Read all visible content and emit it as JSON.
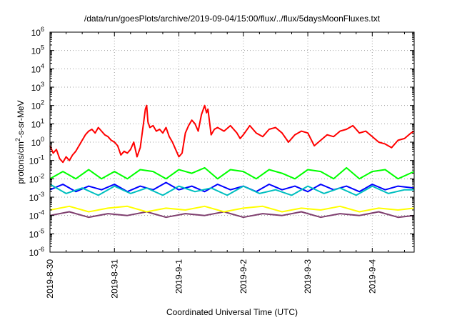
{
  "chart_data": {
    "type": "line",
    "title": "/data/run/goesPlots/archive/2019-09-04/15:00/flux/../flux/5daysMoonFluxes.txt",
    "xlabel": "Coordinated Universal Time (UTC)",
    "ylabel": {
      "prefix": "protons/cm",
      "sup": "2",
      "suffix": "-s-sr-MeV"
    },
    "y_scale": "log",
    "ylim_exponents": [
      -6,
      6
    ],
    "y_ticks": [
      {
        "base": "10",
        "exp": "-6"
      },
      {
        "base": "10",
        "exp": "-5"
      },
      {
        "base": "10",
        "exp": "-4"
      },
      {
        "base": "10",
        "exp": "-3"
      },
      {
        "base": "10",
        "exp": "-2"
      },
      {
        "base": "10",
        "exp": "-1"
      },
      {
        "base": "10",
        "exp": "0"
      },
      {
        "base": "10",
        "exp": "1"
      },
      {
        "base": "10",
        "exp": "2"
      },
      {
        "base": "10",
        "exp": "3"
      },
      {
        "base": "10",
        "exp": "4"
      },
      {
        "base": "10",
        "exp": "5"
      },
      {
        "base": "10",
        "exp": "6"
      }
    ],
    "x_ticks": [
      "2019-8-30",
      "2019-8-31",
      "2019-9-1",
      "2019-9-2",
      "2019-9-3",
      "2019-9-4"
    ],
    "xlim_days": [
      0,
      5.65
    ],
    "grid": true,
    "legend": "none",
    "series": [
      {
        "color": "#ff0000",
        "x": [
          0.0,
          0.05,
          0.1,
          0.15,
          0.2,
          0.25,
          0.3,
          0.35,
          0.4,
          0.45,
          0.5,
          0.55,
          0.6,
          0.65,
          0.7,
          0.75,
          0.8,
          0.85,
          0.9,
          0.95,
          1.0,
          1.05,
          1.1,
          1.15,
          1.2,
          1.25,
          1.3,
          1.35,
          1.4,
          1.45,
          1.48,
          1.5,
          1.52,
          1.55,
          1.6,
          1.65,
          1.7,
          1.75,
          1.8,
          1.85,
          1.9,
          1.95,
          2.0,
          2.05,
          2.1,
          2.15,
          2.2,
          2.25,
          2.3,
          2.35,
          2.4,
          2.43,
          2.45,
          2.5,
          2.55,
          2.6,
          2.7,
          2.8,
          2.9,
          2.95,
          3.0,
          3.1,
          3.2,
          3.3,
          3.4,
          3.5,
          3.6,
          3.7,
          3.8,
          3.9,
          4.0,
          4.1,
          4.2,
          4.3,
          4.4,
          4.5,
          4.6,
          4.7,
          4.8,
          4.9,
          5.0,
          5.1,
          5.2,
          5.3,
          5.4,
          5.5,
          5.6,
          5.65
        ],
        "y_log10": [
          -0.2,
          -0.6,
          -0.4,
          -0.9,
          -1.1,
          -0.8,
          -1.0,
          -0.7,
          -0.5,
          -0.2,
          0.1,
          0.4,
          0.6,
          0.7,
          0.5,
          0.8,
          0.6,
          0.4,
          0.3,
          0.1,
          0.0,
          -0.2,
          -0.7,
          -0.5,
          -0.6,
          -0.4,
          0.0,
          -0.8,
          -0.3,
          1.0,
          1.8,
          2.0,
          1.1,
          0.8,
          0.9,
          0.6,
          0.7,
          0.5,
          0.8,
          0.3,
          0.0,
          -0.4,
          -0.8,
          -0.6,
          0.5,
          0.9,
          1.2,
          1.0,
          0.6,
          1.5,
          2.0,
          1.6,
          1.8,
          0.4,
          0.7,
          0.8,
          0.6,
          0.9,
          0.5,
          0.2,
          0.4,
          0.9,
          0.5,
          0.3,
          0.7,
          0.8,
          0.5,
          0.0,
          0.4,
          0.6,
          0.5,
          -0.2,
          0.1,
          0.4,
          0.3,
          0.6,
          0.7,
          0.9,
          0.5,
          0.6,
          0.3,
          0.0,
          -0.1,
          -0.3,
          0.1,
          0.2,
          0.5,
          0.6
        ]
      },
      {
        "color": "#00ff00",
        "x": [
          0.0,
          0.2,
          0.4,
          0.6,
          0.8,
          1.0,
          1.2,
          1.4,
          1.6,
          1.8,
          2.0,
          2.2,
          2.4,
          2.6,
          2.8,
          3.0,
          3.2,
          3.4,
          3.6,
          3.8,
          4.0,
          4.2,
          4.4,
          4.6,
          4.8,
          5.0,
          5.2,
          5.4,
          5.65
        ],
        "y_log10": [
          -2.0,
          -1.6,
          -2.0,
          -1.5,
          -2.0,
          -1.6,
          -2.0,
          -1.5,
          -1.6,
          -2.0,
          -1.5,
          -1.7,
          -1.4,
          -2.0,
          -1.5,
          -1.6,
          -2.0,
          -1.5,
          -1.7,
          -2.0,
          -1.5,
          -1.6,
          -2.0,
          -1.4,
          -2.0,
          -1.6,
          -1.5,
          -2.0,
          -1.6
        ]
      },
      {
        "color": "#00bfbf",
        "x": [
          0.0,
          0.25,
          0.5,
          0.75,
          1.0,
          1.25,
          1.5,
          1.75,
          2.0,
          2.25,
          2.5,
          2.75,
          3.0,
          3.25,
          3.5,
          3.75,
          4.0,
          4.25,
          4.5,
          4.75,
          5.0,
          5.25,
          5.5,
          5.65
        ],
        "y_log10": [
          -2.3,
          -2.8,
          -2.5,
          -2.9,
          -2.4,
          -2.8,
          -2.5,
          -2.9,
          -2.4,
          -2.7,
          -2.5,
          -2.9,
          -2.4,
          -2.8,
          -2.6,
          -2.9,
          -2.4,
          -2.8,
          -2.5,
          -2.9,
          -2.4,
          -2.8,
          -2.6,
          -2.6
        ]
      },
      {
        "color": "#0000ff",
        "x": [
          0.0,
          0.2,
          0.4,
          0.6,
          0.8,
          1.0,
          1.2,
          1.4,
          1.6,
          1.8,
          2.0,
          2.2,
          2.4,
          2.6,
          2.8,
          3.0,
          3.2,
          3.4,
          3.6,
          3.8,
          4.0,
          4.2,
          4.4,
          4.6,
          4.8,
          5.0,
          5.2,
          5.4,
          5.65
        ],
        "y_log10": [
          -2.6,
          -2.3,
          -2.7,
          -2.4,
          -2.6,
          -2.3,
          -2.7,
          -2.4,
          -2.6,
          -2.2,
          -2.6,
          -2.4,
          -2.7,
          -2.3,
          -2.6,
          -2.4,
          -2.7,
          -2.3,
          -2.6,
          -2.4,
          -2.7,
          -2.3,
          -2.6,
          -2.4,
          -2.7,
          -2.3,
          -2.6,
          -2.4,
          -2.5
        ]
      },
      {
        "color": "#ffff00",
        "x": [
          0.0,
          0.3,
          0.6,
          0.9,
          1.2,
          1.5,
          1.8,
          2.1,
          2.4,
          2.7,
          3.0,
          3.3,
          3.6,
          3.9,
          4.2,
          4.5,
          4.8,
          5.1,
          5.4,
          5.65
        ],
        "y_log10": [
          -3.7,
          -3.5,
          -3.8,
          -3.6,
          -3.5,
          -3.8,
          -3.6,
          -3.7,
          -3.5,
          -3.8,
          -3.6,
          -3.5,
          -3.8,
          -3.6,
          -3.7,
          -3.5,
          -3.8,
          -3.6,
          -3.7,
          -3.6
        ]
      },
      {
        "color": "#7f3f6f",
        "x": [
          0.0,
          0.3,
          0.6,
          0.9,
          1.2,
          1.5,
          1.8,
          2.1,
          2.4,
          2.7,
          3.0,
          3.3,
          3.6,
          3.9,
          4.2,
          4.5,
          4.8,
          5.1,
          5.4,
          5.65
        ],
        "y_log10": [
          -4.0,
          -3.8,
          -4.1,
          -3.9,
          -4.0,
          -3.8,
          -4.1,
          -3.9,
          -4.0,
          -3.8,
          -4.1,
          -3.9,
          -4.0,
          -3.8,
          -4.1,
          -3.9,
          -4.0,
          -3.8,
          -4.1,
          -4.0
        ]
      }
    ]
  }
}
